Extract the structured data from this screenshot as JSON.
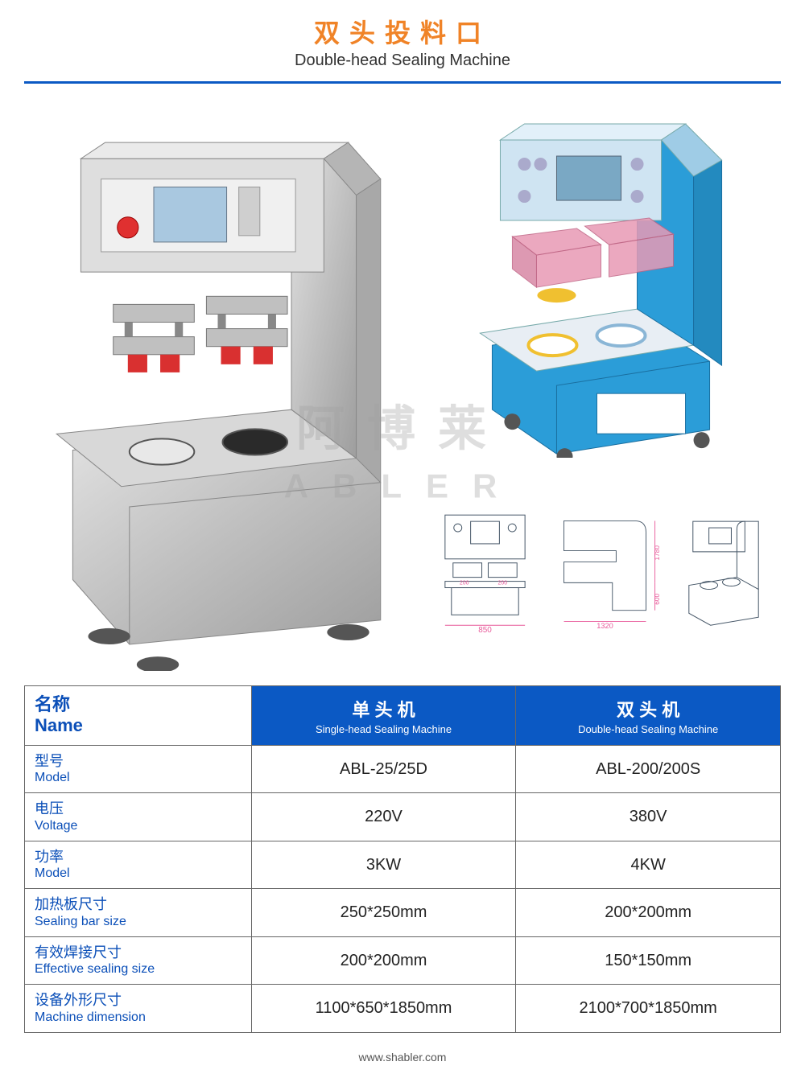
{
  "colors": {
    "accent_orange": "#f08327",
    "header_blue": "#0b59c4",
    "table_header_bg": "#0b59c4",
    "label_blue": "#0b4fb8",
    "divider": "#0b59c4",
    "machine_body": "#c9c9c9",
    "machine_shadow": "#9a9a9a",
    "machine_red": "#d93030",
    "iso_blue": "#2b9dd8",
    "iso_pink": "#e89ab5",
    "iso_yellow": "#f0c030",
    "dim_pink": "#e85a9a"
  },
  "header": {
    "title_cn": "双头投料口",
    "title_en": "Double-head Sealing Machine"
  },
  "watermark": {
    "cn": "阿博莱",
    "en": "ABLER"
  },
  "dimensions": {
    "front_width": "850",
    "side_width": "1320",
    "height_upper": "1780",
    "height_lower": "600"
  },
  "table": {
    "name_label_cn": "名称",
    "name_label_en": "Name",
    "col1_cn": "单 头 机",
    "col1_en": "Single-head Sealing Machine",
    "col2_cn": "双 头 机",
    "col2_en": "Double-head Sealing Machine",
    "rows": [
      {
        "label_cn": "型号",
        "label_en": "Model",
        "v1": "ABL-25/25D",
        "v2": "ABL-200/200S"
      },
      {
        "label_cn": "电压",
        "label_en": "Voltage",
        "v1": "220V",
        "v2": "380V"
      },
      {
        "label_cn": "功率",
        "label_en": "Model",
        "v1": "3KW",
        "v2": "4KW"
      },
      {
        "label_cn": "加热板尺寸",
        "label_en": "Sealing bar size",
        "v1": "250*250mm",
        "v2": "200*200mm"
      },
      {
        "label_cn": "有效焊接尺寸",
        "label_en": "Effective sealing size",
        "v1": "200*200mm",
        "v2": "150*150mm"
      },
      {
        "label_cn": "设备外形尺寸",
        "label_en": "Machine dimension",
        "v1": "1100*650*1850mm",
        "v2": "2100*700*1850mm"
      }
    ]
  },
  "footer": "www.shabler.com"
}
